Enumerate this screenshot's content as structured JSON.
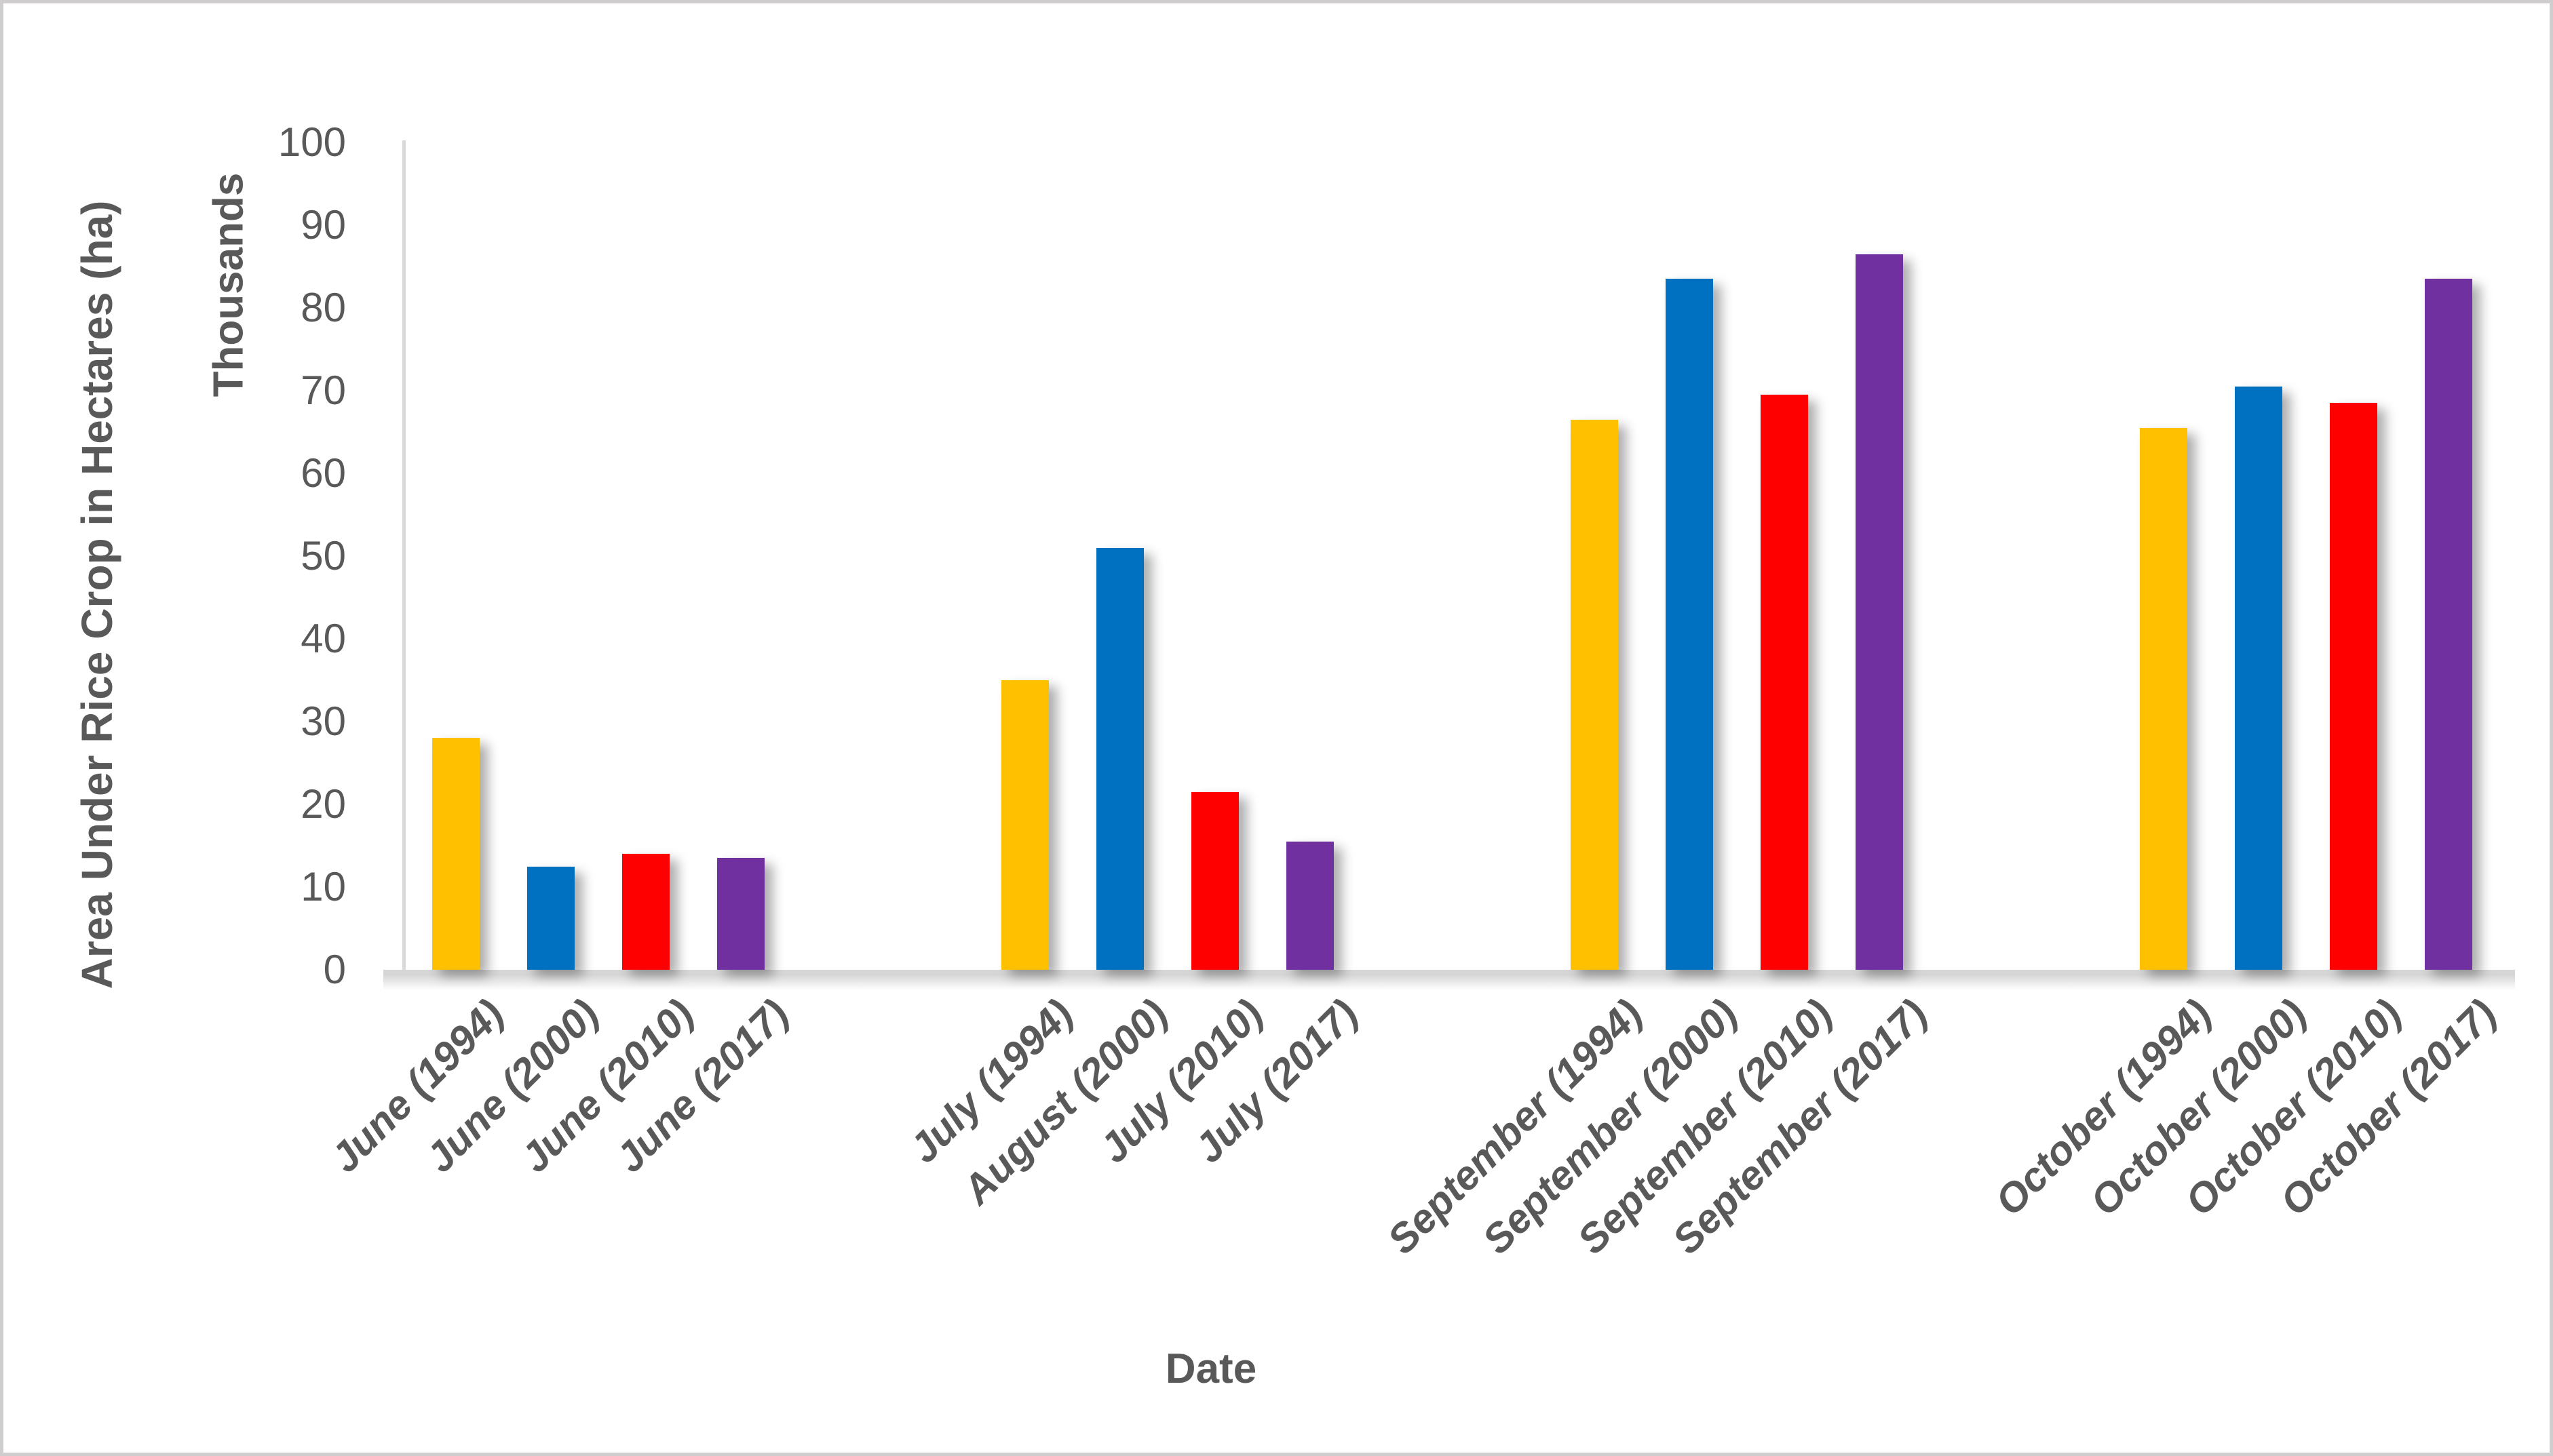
{
  "figure": {
    "background": "#FFFFFF",
    "border_color": "#CFCDCD",
    "text_color": "#595959",
    "axis_line_color": "#D9D9D9"
  },
  "chart_data": {
    "type": "bar",
    "title": "",
    "xlabel": "Date",
    "ylabel": "Area Under Rice Crop in Hectares (ha)",
    "y_units_label": "Thousands",
    "ylim": [
      0,
      100
    ],
    "yticks": [
      100,
      90,
      80,
      70,
      60,
      50,
      40,
      30,
      20,
      10,
      0
    ],
    "grid": false,
    "legend": "none",
    "bar_colors": [
      "#FFC000",
      "#0070C0",
      "#FF0000",
      "#7030A0"
    ],
    "groups": [
      {
        "name": "June",
        "bars": [
          {
            "label": "June (1994)",
            "value": 28
          },
          {
            "label": "June (2000)",
            "value": 12.5
          },
          {
            "label": "June (2010)",
            "value": 14
          },
          {
            "label": "June (2017)",
            "value": 13.5
          }
        ]
      },
      {
        "name": "July",
        "bars": [
          {
            "label": "July (1994)",
            "value": 35
          },
          {
            "label": "August (2000)",
            "value": 51
          },
          {
            "label": "July (2010)",
            "value": 21.5
          },
          {
            "label": "July (2017)",
            "value": 15.5
          }
        ]
      },
      {
        "name": "September",
        "bars": [
          {
            "label": "September (1994)",
            "value": 66.5
          },
          {
            "label": "September (2000)",
            "value": 83.5
          },
          {
            "label": "September (2010)",
            "value": 69.5
          },
          {
            "label": "September (2017)",
            "value": 86.5
          }
        ]
      },
      {
        "name": "October",
        "bars": [
          {
            "label": "October (1994)",
            "value": 65.5
          },
          {
            "label": "October (2000)",
            "value": 70.5
          },
          {
            "label": "October (2010)",
            "value": 68.5
          },
          {
            "label": "October (2017)",
            "value": 83.5
          }
        ]
      }
    ]
  }
}
